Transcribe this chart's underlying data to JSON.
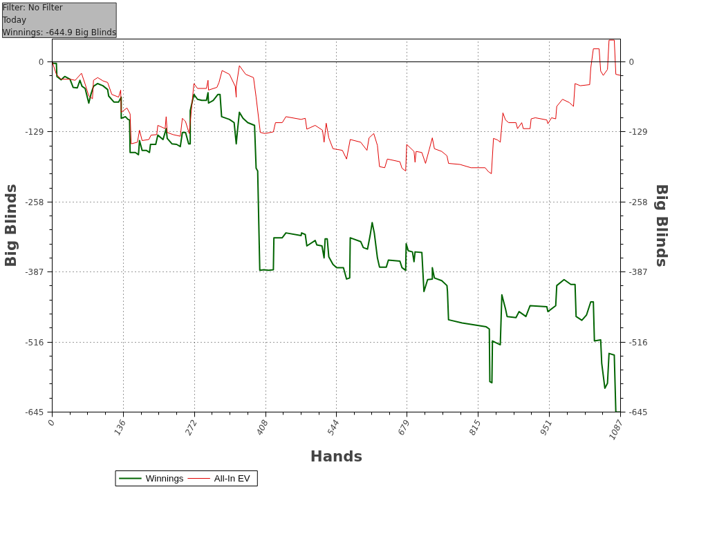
{
  "chart_data": {
    "type": "line",
    "xlabel": "Hands",
    "ylabel": "Big Blinds",
    "y2label": "Big Blinds",
    "annotations": [
      "Filter: No Filter",
      "Today",
      "Winnings: -644.9 Big Blinds"
    ],
    "xlim": [
      0,
      1087
    ],
    "xticks": [
      0,
      136,
      272,
      408,
      544,
      679,
      815,
      951,
      1087
    ],
    "ylim": [
      -645,
      42
    ],
    "yticks": [
      -645,
      -516,
      -387,
      -258,
      -129,
      0
    ],
    "y2lim": [
      -645,
      42
    ],
    "y2ticks": [
      -645,
      -516,
      -387,
      -258,
      -129,
      0
    ],
    "grid": true,
    "legend": "bottom",
    "line_style": "solid",
    "ref_lines": [
      {
        "axis": "y",
        "value": 0,
        "label": null,
        "color": "#000000"
      }
    ],
    "series": [
      {
        "name": "Winnings",
        "color": "#006400",
        "x": [
          0,
          1,
          8,
          9,
          17,
          24,
          34,
          40,
          48,
          53,
          57,
          63,
          70,
          74,
          79,
          87,
          97,
          106,
          108,
          118,
          127,
          132,
          132,
          140,
          145,
          148,
          149,
          159,
          165,
          167,
          172,
          180,
          186,
          188,
          198,
          202,
          212,
          218,
          220,
          229,
          238,
          245,
          249,
          255,
          261,
          264,
          264,
          271,
          278,
          286,
          295,
          298,
          299,
          308,
          317,
          321,
          324,
          339,
          348,
          352,
          354,
          358,
          365,
          374,
          387,
          390,
          393,
          397,
          405,
          414,
          423,
          424,
          440,
          447,
          476,
          477,
          484,
          487,
          503,
          506,
          516,
          520,
          522,
          526,
          529,
          537,
          544,
          557,
          563,
          569,
          570,
          590,
          595,
          603,
          608,
          612,
          616,
          622,
          626,
          639,
          643,
          665,
          669,
          676,
          677,
          681,
          689,
          692,
          694,
          707,
          711,
          718,
          727,
          727,
          731,
          745,
          755,
          756,
          758,
          784,
          830,
          836,
          837,
          841,
          842,
          857,
          860,
          867,
          870,
          887,
          893,
          906,
          914,
          946,
          948,
          963,
          965,
          979,
          992,
          1000,
          1002,
          1013,
          1022,
          1030,
          1035,
          1037,
          1049,
          1051,
          1057,
          1062,
          1065,
          1075,
          1078,
          1087
        ],
        "values": [
          0,
          -3,
          -3,
          -27,
          -33,
          -27,
          -32,
          -47,
          -48,
          -34,
          -45,
          -49,
          -76,
          -60,
          -45,
          -40,
          -44,
          -51,
          -63,
          -74,
          -74,
          -65,
          -104,
          -101,
          -106,
          -107,
          -167,
          -167,
          -171,
          -145,
          -163,
          -163,
          -167,
          -152,
          -152,
          -135,
          -143,
          -123,
          -141,
          -151,
          -152,
          -156,
          -130,
          -130,
          -151,
          -151,
          -90,
          -60,
          -69,
          -71,
          -71,
          -57,
          -76,
          -71,
          -60,
          -60,
          -101,
          -106,
          -112,
          -151,
          -130,
          -93,
          -104,
          -112,
          -117,
          -196,
          -201,
          -384,
          -383,
          -384,
          -383,
          -324,
          -324,
          -315,
          -320,
          -315,
          -318,
          -339,
          -329,
          -337,
          -339,
          -361,
          -326,
          -326,
          -359,
          -373,
          -379,
          -379,
          -400,
          -398,
          -324,
          -331,
          -342,
          -345,
          -320,
          -296,
          -315,
          -361,
          -378,
          -378,
          -365,
          -367,
          -379,
          -384,
          -335,
          -348,
          -350,
          -368,
          -350,
          -351,
          -423,
          -401,
          -400,
          -379,
          -398,
          -403,
          -412,
          -423,
          -475,
          -481,
          -488,
          -492,
          -589,
          -591,
          -514,
          -521,
          -429,
          -455,
          -469,
          -471,
          -460,
          -469,
          -449,
          -451,
          -460,
          -449,
          -412,
          -401,
          -410,
          -410,
          -469,
          -476,
          -466,
          -442,
          -442,
          -514,
          -512,
          -555,
          -601,
          -592,
          -537,
          -540,
          -645,
          -645
        ]
      },
      {
        "name": "All-In EV",
        "color": "#e00000",
        "x": [
          0,
          1,
          8,
          17,
          34,
          44,
          56,
          63,
          70,
          77,
          79,
          87,
          97,
          106,
          114,
          127,
          131,
          132,
          143,
          149,
          151,
          163,
          167,
          172,
          185,
          189,
          200,
          202,
          216,
          218,
          220,
          231,
          245,
          249,
          255,
          262,
          271,
          278,
          295,
          298,
          299,
          315,
          319,
          325,
          339,
          350,
          352,
          352,
          358,
          370,
          385,
          390,
          398,
          407,
          423,
          427,
          440,
          447,
          476,
          484,
          487,
          503,
          517,
          520,
          524,
          529,
          537,
          555,
          563,
          570,
          590,
          602,
          606,
          615,
          622,
          626,
          636,
          641,
          665,
          669,
          676,
          678,
          692,
          694,
          696,
          707,
          714,
          721,
          727,
          731,
          745,
          755,
          758,
          780,
          801,
          828,
          834,
          840,
          844,
          852,
          857,
          862,
          867,
          873,
          887,
          890,
          898,
          901,
          914,
          916,
          924,
          946,
          948,
          955,
          963,
          965,
          976,
          989,
          997,
          1000,
          1010,
          1028,
          1030,
          1035,
          1046,
          1049,
          1054,
          1062,
          1065,
          1075,
          1078,
          1087
        ],
        "values": [
          0,
          -3,
          -23,
          -32,
          -32,
          -34,
          -21,
          -41,
          -63,
          -68,
          -34,
          -29,
          -35,
          -38,
          -60,
          -65,
          -52,
          -93,
          -85,
          -96,
          -151,
          -148,
          -126,
          -145,
          -143,
          -135,
          -134,
          -117,
          -123,
          -101,
          -130,
          -134,
          -137,
          -104,
          -110,
          -132,
          -40,
          -49,
          -49,
          -34,
          -52,
          -47,
          -38,
          -16,
          -23,
          -45,
          -65,
          -45,
          -7,
          -23,
          -29,
          -65,
          -130,
          -132,
          -129,
          -112,
          -112,
          -101,
          -106,
          -104,
          -124,
          -117,
          -126,
          -148,
          -113,
          -140,
          -160,
          -163,
          -179,
          -143,
          -148,
          -163,
          -140,
          -132,
          -154,
          -193,
          -195,
          -179,
          -184,
          -196,
          -201,
          -152,
          -165,
          -185,
          -165,
          -167,
          -187,
          -162,
          -140,
          -160,
          -165,
          -173,
          -187,
          -189,
          -195,
          -195,
          -202,
          -206,
          -141,
          -144,
          -148,
          -94,
          -107,
          -112,
          -112,
          -123,
          -112,
          -123,
          -123,
          -105,
          -103,
          -107,
          -114,
          -103,
          -105,
          -82,
          -69,
          -75,
          -82,
          -40,
          -44,
          -42,
          -12,
          24,
          24,
          -17,
          -25,
          -14,
          40,
          40,
          -23,
          -25
        ]
      }
    ]
  }
}
